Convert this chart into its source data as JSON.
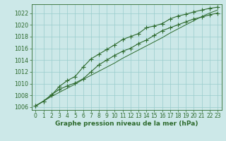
{
  "x": [
    0,
    1,
    2,
    3,
    4,
    5,
    6,
    7,
    8,
    9,
    10,
    11,
    12,
    13,
    14,
    15,
    16,
    17,
    18,
    19,
    20,
    21,
    22,
    23
  ],
  "line_upper": [
    1006.2,
    1007.0,
    1008.0,
    1009.5,
    1010.5,
    1011.2,
    1012.8,
    1014.2,
    1015.0,
    1015.8,
    1016.6,
    1017.5,
    1018.0,
    1018.5,
    1019.5,
    1019.8,
    1020.2,
    1021.0,
    1021.5,
    1021.8,
    1022.2,
    1022.5,
    1022.8,
    1023.0
  ],
  "line_lower": [
    1006.2,
    1007.0,
    1008.1,
    1009.0,
    1009.6,
    1010.1,
    1010.8,
    1012.0,
    1013.2,
    1014.0,
    1014.8,
    1015.5,
    1016.0,
    1016.8,
    1017.4,
    1018.2,
    1019.0,
    1019.5,
    1020.0,
    1020.5,
    1021.0,
    1021.3,
    1021.7,
    1022.0
  ],
  "line_straight": [
    1006.2,
    1007.0,
    1007.8,
    1008.5,
    1009.2,
    1009.9,
    1010.7,
    1011.4,
    1012.1,
    1012.8,
    1013.5,
    1014.3,
    1015.0,
    1015.7,
    1016.4,
    1017.1,
    1017.8,
    1018.6,
    1019.3,
    1020.0,
    1020.7,
    1021.4,
    1022.0,
    1022.5
  ],
  "line_color": "#2d6a2d",
  "bg_color": "#cce8e8",
  "grid_color": "#99cccc",
  "xlabel": "Graphe pression niveau de la mer (hPa)",
  "ylim": [
    1005.5,
    1023.5
  ],
  "xlim": [
    -0.5,
    23.5
  ],
  "yticks": [
    1006,
    1008,
    1010,
    1012,
    1014,
    1016,
    1018,
    1020,
    1022
  ],
  "xticks": [
    0,
    1,
    2,
    3,
    4,
    5,
    6,
    7,
    8,
    9,
    10,
    11,
    12,
    13,
    14,
    15,
    16,
    17,
    18,
    19,
    20,
    21,
    22,
    23
  ],
  "marker_style": "+",
  "marker_size": 4
}
